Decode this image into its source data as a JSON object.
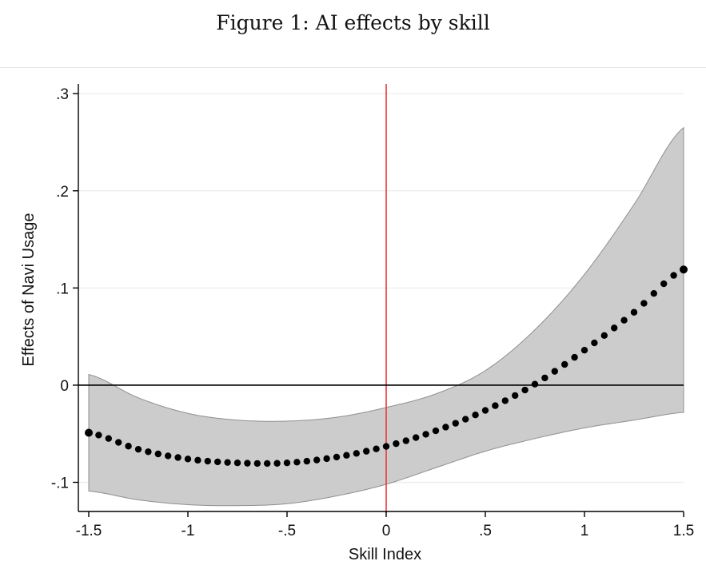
{
  "figure": {
    "caption": "Figure 1: AI effects by skill"
  },
  "chart_data": {
    "type": "line",
    "title": "",
    "xlabel": "Skill Index",
    "ylabel": "Effects of Navi Usage",
    "xlim": [
      -1.5,
      1.5
    ],
    "ylim": [
      -0.13,
      0.31
    ],
    "x_ticks": [
      -1.5,
      -1,
      -0.5,
      0,
      0.5,
      1,
      1.5
    ],
    "x_tick_labels": [
      "-1.5",
      "-1",
      "-.5",
      "0",
      ".5",
      "1",
      "1.5"
    ],
    "y_ticks": [
      -0.1,
      0,
      0.1,
      0.2,
      0.3
    ],
    "y_tick_labels": [
      "-.1",
      "0",
      ".1",
      ".2",
      ".3"
    ],
    "grid": true,
    "reference_lines": [
      {
        "axis": "x",
        "value": 0,
        "color": "#e8383d"
      },
      {
        "axis": "y",
        "value": 0,
        "color": "#000000"
      }
    ],
    "series": [
      {
        "x": [
          -1.5,
          -1.25,
          -1.0,
          -0.75,
          -0.5,
          -0.25,
          0.0,
          0.25,
          0.5,
          0.75,
          1.0,
          1.25,
          1.5
        ],
        "values": [
          -0.049,
          -0.066,
          -0.076,
          -0.08,
          -0.08,
          -0.074,
          -0.063,
          -0.047,
          -0.026,
          0.001,
          0.036,
          0.075,
          0.119
        ],
        "ci_lower": [
          -0.109,
          -0.118,
          -0.123,
          -0.124,
          -0.122,
          -0.114,
          -0.102,
          -0.085,
          -0.068,
          -0.055,
          -0.044,
          -0.036,
          -0.028
        ],
        "ci_upper": [
          0.011,
          -0.013,
          -0.029,
          -0.036,
          -0.037,
          -0.033,
          -0.023,
          -0.009,
          0.015,
          0.057,
          0.114,
          0.186,
          0.265
        ],
        "color": "#000000",
        "band_color": "#cccccc"
      }
    ]
  }
}
